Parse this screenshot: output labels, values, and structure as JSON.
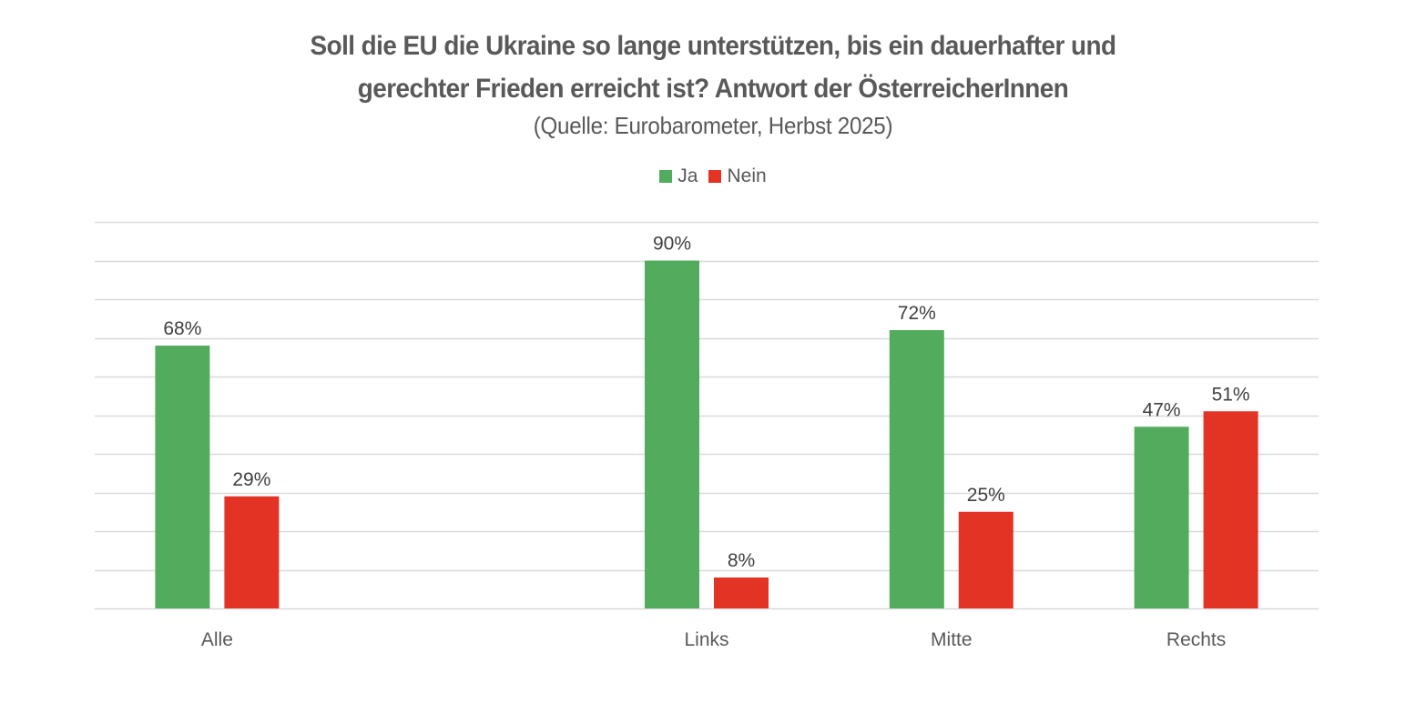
{
  "chart_data": {
    "type": "bar",
    "title_line1": "Soll die EU die Ukraine so lange unterstützen, bis ein dauerhafter und",
    "title_line2": "gerechter Frieden erreicht ist? Antwort der ÖsterreicherInnen",
    "subtitle": "(Quelle: Eurobarometer, Herbst 2025)",
    "categories": [
      "Alle",
      "",
      "Links",
      "Mitte",
      "Rechts"
    ],
    "series": [
      {
        "name": "Ja",
        "color": "#53AC5E",
        "values": [
          68,
          null,
          90,
          72,
          47
        ],
        "labels": [
          "68%",
          "",
          "90%",
          "72%",
          "47%"
        ]
      },
      {
        "name": "Nein",
        "color": "#E33324",
        "values": [
          29,
          null,
          8,
          25,
          51
        ],
        "labels": [
          "29%",
          "",
          "8%",
          "25%",
          "51%"
        ]
      }
    ],
    "xlabel": "",
    "ylabel": "",
    "ylim": [
      0,
      100
    ],
    "ytick_step": 10,
    "grid": true,
    "legend_position": "top-center",
    "gridline_color": "#D9D9D9"
  }
}
